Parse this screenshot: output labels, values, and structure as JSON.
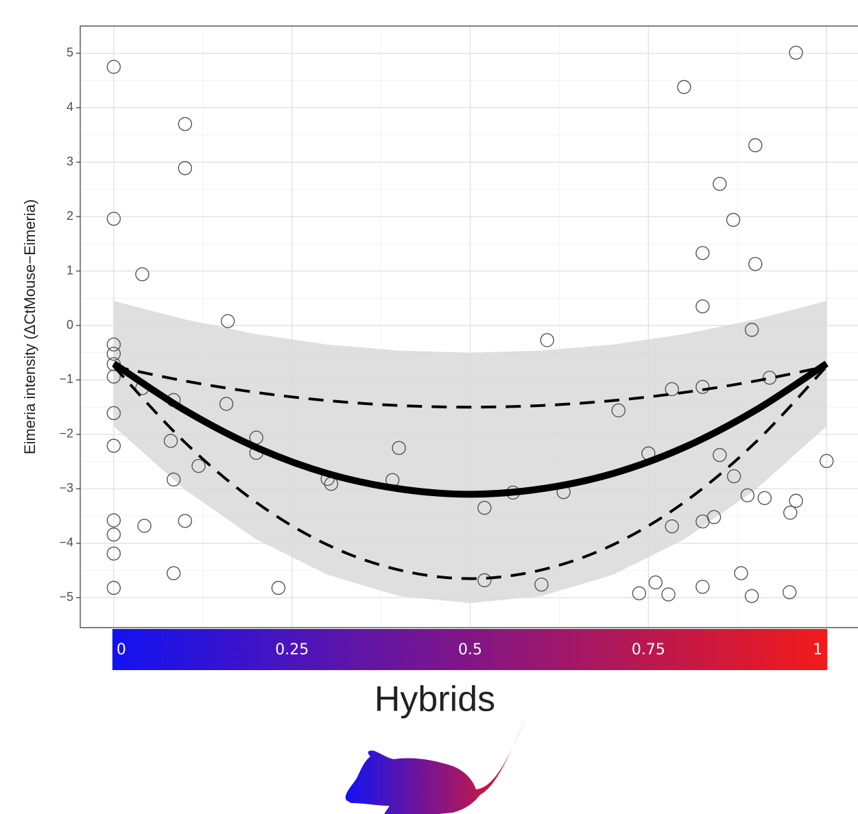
{
  "chart_data": {
    "type": "scatter",
    "y_label": "Eimeria intensity (ΔCtMouse−Eimeria)",
    "x_label": "Hybrids",
    "xlim": [
      -0.047,
      1.044
    ],
    "ylim": [
      -5.55,
      5.5
    ],
    "xticks": [
      0,
      0.25,
      0.5,
      0.75,
      1
    ],
    "yticks": [
      {
        "value": -5,
        "label": "−5"
      },
      {
        "value": -4,
        "label": "−4"
      },
      {
        "value": -3,
        "label": "−3"
      },
      {
        "value": -2,
        "label": "−2"
      },
      {
        "value": -1,
        "label": "−1"
      },
      0,
      1,
      2,
      3,
      4,
      5
    ],
    "grid": true,
    "colorbar_colors": [
      "#1212f2",
      "#f21a1a"
    ],
    "x": [
      0,
      0,
      0,
      0,
      0,
      0,
      0,
      0,
      0,
      0,
      0,
      0,
      0.04,
      0.04,
      0.043,
      0.084,
      0.08,
      0.084,
      0.084,
      0.1,
      0.1,
      0.1,
      0.119,
      0.16,
      0.158,
      0.2,
      0.2,
      0.231,
      0.3,
      0.305,
      0.391,
      0.4,
      0.52,
      0.52,
      0.56,
      0.608,
      0.631,
      0.6,
      0.708,
      0.75,
      0.737,
      0.76,
      0.778,
      0.783,
      0.783,
      0.8,
      0.826,
      0.826,
      0.826,
      0.826,
      0.826,
      0.842,
      0.85,
      0.85,
      0.869,
      0.87,
      0.88,
      0.889,
      0.895,
      0.9,
      0.9,
      0.895,
      0.913,
      0.92,
      0.949,
      0.948,
      0.957,
      0.957,
      1.0
    ],
    "values": [
      4.75,
      1.96,
      -0.35,
      -0.52,
      -0.71,
      -0.94,
      -1.61,
      -2.21,
      -3.58,
      -3.84,
      -4.19,
      -4.82,
      0.94,
      -1.15,
      -3.68,
      -1.37,
      -2.12,
      -2.83,
      -4.55,
      3.7,
      2.89,
      -3.59,
      -2.58,
      0.08,
      -1.44,
      -2.06,
      -2.34,
      -4.82,
      -2.82,
      -2.91,
      -2.84,
      -2.25,
      -3.35,
      -4.68,
      -3.07,
      -0.27,
      -3.06,
      -4.76,
      -1.56,
      -2.35,
      -4.92,
      -4.72,
      -4.94,
      -3.69,
      -1.17,
      4.38,
      1.33,
      0.35,
      -1.13,
      -3.6,
      -4.8,
      -3.52,
      2.6,
      -2.38,
      1.94,
      -2.77,
      -4.55,
      -3.12,
      -4.97,
      3.31,
      1.13,
      -0.08,
      -3.17,
      -0.96,
      -3.44,
      -4.9,
      -3.22,
      5.01,
      -2.49
    ],
    "fit": {
      "x": [
        0,
        0.1,
        0.2,
        0.3,
        0.4,
        0.5,
        0.6,
        0.7,
        0.8,
        0.9,
        1
      ],
      "values": [
        -0.7,
        -1.56,
        -2.24,
        -2.72,
        -3.0,
        -3.1,
        -3.0,
        -2.72,
        -2.24,
        -1.56,
        -0.7
      ],
      "upper": [
        -0.75,
        -1.02,
        -1.23,
        -1.38,
        -1.47,
        -1.5,
        -1.47,
        -1.38,
        -1.23,
        -1.02,
        -0.75
      ],
      "lower": [
        -0.75,
        -2.15,
        -3.25,
        -4.03,
        -4.49,
        -4.65,
        -4.49,
        -4.03,
        -3.25,
        -2.15,
        -0.75
      ],
      "band_upper": [
        0.45,
        0.11,
        -0.16,
        -0.35,
        -0.46,
        -0.5,
        -0.46,
        -0.35,
        -0.16,
        0.11,
        0.45
      ],
      "band_lower": [
        -1.85,
        -3.02,
        -3.93,
        -4.58,
        -4.97,
        -5.1,
        -4.97,
        -4.58,
        -3.93,
        -3.02,
        -1.85
      ]
    }
  }
}
